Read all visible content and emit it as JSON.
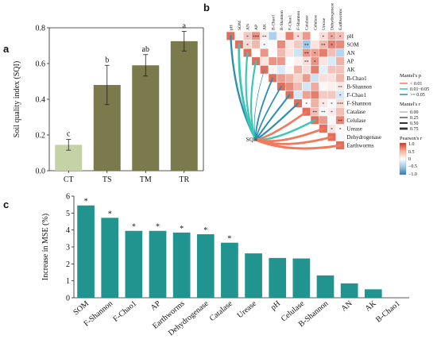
{
  "panels": {
    "a": "a",
    "b": "b",
    "c": "c"
  },
  "colors": {
    "bar_a_ct": "#c5d2a6",
    "bar_a": "#7b7a4c",
    "bar_c": "#21948f",
    "mantel_low": "#f07a5e",
    "mantel_mid": "#3cc7b4",
    "mantel_high": "#2f8fb3",
    "pos": "#e34a33",
    "neg": "#3a8ec2"
  },
  "chart_data": [
    {
      "type": "bar",
      "panel": "a",
      "categories": [
        "CT",
        "TS",
        "TM",
        "TR"
      ],
      "values": [
        0.145,
        0.48,
        0.59,
        0.725
      ],
      "errors": [
        0.03,
        0.11,
        0.06,
        0.055
      ],
      "letters": [
        "c",
        "b",
        "ab",
        "a"
      ],
      "ylabel": "Soil quality index (SQI)",
      "ylim": [
        0,
        0.8
      ],
      "yticks": [
        "0.0",
        "0.2",
        "0.4",
        "0.6",
        "0.8"
      ]
    },
    {
      "type": "heatmap",
      "panel": "b",
      "variables": [
        "pH",
        "SOM",
        "AN",
        "AP",
        "AK",
        "B-Chao1",
        "B-Shannon",
        "F-Chao1",
        "F-Shannon",
        "Catalase",
        "Celulase",
        "Urease",
        "Dehydrogenase",
        "Earthworms"
      ],
      "source_label": "SQI",
      "legend": {
        "mantel_p_title": "Mantel's p",
        "mantel_p_items": [
          "< 0.01",
          "0.01~0.05",
          ">= 0.05"
        ],
        "mantel_r_title": "Mantel's r",
        "mantel_r_items": [
          "0.00",
          "0.25",
          "0.50",
          "0.75"
        ],
        "pearson_title": "Pearson's r",
        "pearson_ticks": [
          "1.0",
          "0.5",
          "0",
          "−0.5",
          "−1.0"
        ]
      },
      "mantel_links": [
        {
          "to": "pH",
          "p": ">= 0.05",
          "r": 0.55
        },
        {
          "to": "SOM",
          "p": "0.01~0.05",
          "r": 0.7
        },
        {
          "to": "AN",
          "p": "0.01~0.05",
          "r": 0.5
        },
        {
          "to": "AP",
          "p": "0.01~0.05",
          "r": 0.5
        },
        {
          "to": "AK",
          "p": ">= 0.05",
          "r": 0.05
        },
        {
          "to": "B-Chao1",
          "p": ">= 0.05",
          "r": 0.4
        },
        {
          "to": "B-Shannon",
          "p": ">= 0.05",
          "r": 0.35
        },
        {
          "to": "F-Chao1",
          "p": ">= 0.05",
          "r": 0.45
        },
        {
          "to": "F-Shannon",
          "p": ">= 0.05",
          "r": 0.5
        },
        {
          "to": "Catalase",
          "p": "< 0.01",
          "r": 0.65
        },
        {
          "to": "Celulase",
          "p": "0.01~0.05",
          "r": 0.6
        },
        {
          "to": "Urease",
          "p": "< 0.01",
          "r": 0.7
        },
        {
          "to": "Dehydrogenase",
          "p": "< 0.01",
          "r": 0.7
        },
        {
          "to": "Earthworms",
          "p": "< 0.01",
          "r": 0.75
        }
      ],
      "stars": [
        "",
        "*",
        "***",
        "**",
        "",
        "",
        "",
        "*",
        "",
        "",
        "*",
        "*",
        "*",
        "*",
        "",
        "*",
        "",
        "",
        "",
        "",
        "**",
        "",
        "**",
        "*",
        "",
        "",
        "",
        "",
        "",
        "",
        "",
        "**",
        "*",
        "",
        "",
        "",
        "",
        "",
        "",
        "",
        "",
        "**",
        "*",
        "",
        "",
        "",
        "",
        "",
        "",
        "",
        "",
        "",
        "",
        "",
        "",
        "",
        "",
        "",
        "",
        "",
        "",
        "",
        "",
        "",
        "",
        "",
        "",
        "",
        "",
        "**",
        "",
        "",
        "",
        "",
        "",
        "*",
        "*",
        "",
        "*",
        "*",
        "***",
        "**",
        "**",
        "*",
        "",
        "",
        "",
        "**",
        "*",
        "*"
      ]
    },
    {
      "type": "bar",
      "panel": "c",
      "categories": [
        "SOM",
        "F-Shannon",
        "F-Chao1",
        "AP",
        "Earthworms",
        "Dehydrogenase",
        "Catalase",
        "Urease",
        "pH",
        "Celulase",
        "B-Shannon",
        "AN",
        "AK",
        "B-Chao1"
      ],
      "values": [
        5.45,
        4.72,
        3.95,
        3.95,
        3.85,
        3.75,
        3.25,
        2.62,
        2.35,
        2.32,
        1.32,
        0.85,
        0.5,
        0.0
      ],
      "significant": [
        true,
        true,
        true,
        true,
        true,
        true,
        true,
        false,
        false,
        false,
        false,
        false,
        false,
        false
      ],
      "star": "*",
      "ylabel": "Increase in MSE (%)",
      "ylim": [
        0,
        6
      ],
      "yticks": [
        "0",
        "1",
        "2",
        "3",
        "4",
        "5",
        "6"
      ]
    }
  ]
}
